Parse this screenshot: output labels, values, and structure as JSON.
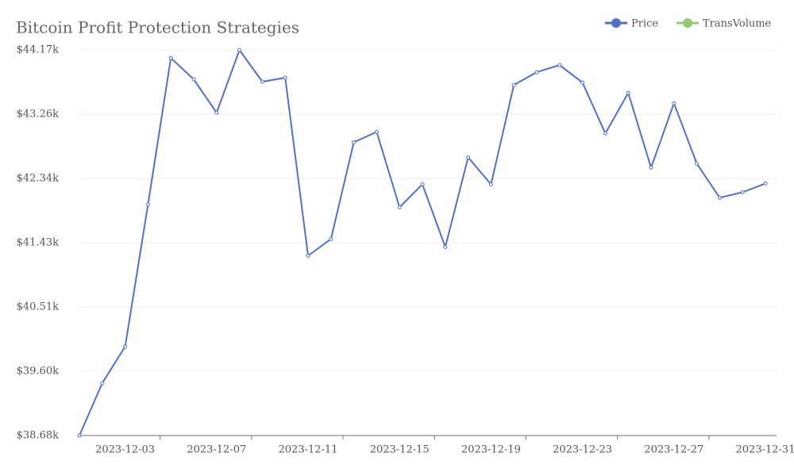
{
  "chart_data": {
    "type": "line",
    "title": "Bitcoin Profit Protection Strategies",
    "x": [
      "2023-12-01",
      "2023-12-02",
      "2023-12-03",
      "2023-12-04",
      "2023-12-05",
      "2023-12-06",
      "2023-12-07",
      "2023-12-08",
      "2023-12-09",
      "2023-12-10",
      "2023-12-11",
      "2023-12-12",
      "2023-12-13",
      "2023-12-14",
      "2023-12-15",
      "2023-12-16",
      "2023-12-17",
      "2023-12-18",
      "2023-12-19",
      "2023-12-20",
      "2023-12-21",
      "2023-12-22",
      "2023-12-23",
      "2023-12-24",
      "2023-12-25",
      "2023-12-26",
      "2023-12-27",
      "2023-12-28",
      "2023-12-29",
      "2023-12-30",
      "2023-12-31"
    ],
    "xticks": [
      {
        "value": 2,
        "label": "2023-12-03"
      },
      {
        "value": 6,
        "label": "2023-12-07"
      },
      {
        "value": 10,
        "label": "2023-12-11"
      },
      {
        "value": 14,
        "label": "2023-12-15"
      },
      {
        "value": 18,
        "label": "2023-12-19"
      },
      {
        "value": 22,
        "label": "2023-12-23"
      },
      {
        "value": 26,
        "label": "2023-12-27"
      },
      {
        "value": 30,
        "label": "2023-12-31"
      }
    ],
    "series": [
      {
        "name": "Price",
        "color": "#5470c6",
        "values": [
          38680,
          39426,
          39946,
          41970,
          44057,
          43752,
          43277,
          44170,
          43718,
          43775,
          41240,
          41478,
          42856,
          43004,
          41930,
          42257,
          41364,
          42641,
          42257,
          43672,
          43854,
          43955,
          43706,
          42982,
          43558,
          42495,
          43411,
          42552,
          42066,
          42145,
          42269
        ]
      },
      {
        "name": "TransVolume",
        "color": "#91cc75",
        "values": [
          null,
          null,
          null,
          null,
          null,
          null,
          null,
          null,
          null,
          null,
          null,
          null,
          null,
          null,
          null,
          null,
          null,
          null,
          null,
          null,
          null,
          null,
          null,
          null,
          null,
          null,
          null,
          null,
          null,
          null,
          null
        ]
      }
    ],
    "ylim": [
      38680,
      44170
    ],
    "yticks": [
      {
        "value": 38680,
        "label": "$38.68k"
      },
      {
        "value": 39595,
        "label": "$39.60k"
      },
      {
        "value": 40510,
        "label": "$40.51k"
      },
      {
        "value": 41425,
        "label": "$41.43k"
      },
      {
        "value": 42340,
        "label": "$42.34k"
      },
      {
        "value": 43255,
        "label": "$43.26k"
      },
      {
        "value": 44170,
        "label": "$44.17k"
      }
    ],
    "grid": true,
    "legend": "top-right"
  }
}
